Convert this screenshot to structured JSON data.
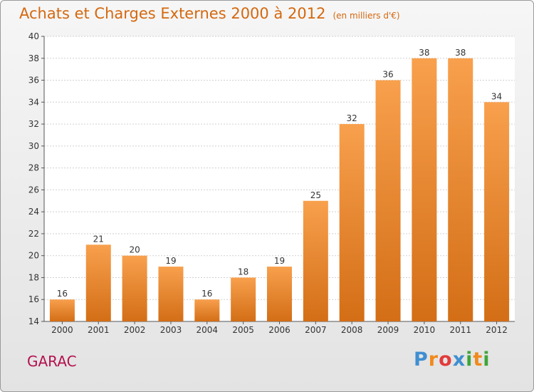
{
  "title": "Achats et Charges Externes 2000 à 2012",
  "unit": "(en milliers d'€)",
  "town": "GARAC",
  "logo": {
    "text": "Proxiti",
    "letters": [
      {
        "ch": "P",
        "color": "#3f8fd0"
      },
      {
        "ch": "r",
        "color": "#f08a1c"
      },
      {
        "ch": "o",
        "color": "#e23b3b"
      },
      {
        "ch": "x",
        "color": "#3f8fd0"
      },
      {
        "ch": "i",
        "color": "#3fa53a"
      },
      {
        "ch": "t",
        "color": "#f08a1c"
      },
      {
        "ch": "i",
        "color": "#3fa53a"
      }
    ]
  },
  "colors": {
    "bar_top": "#f8a04d",
    "bar_bottom": "#d36e16",
    "title": "#d4680f",
    "town": "#b3124f"
  },
  "chart_data": {
    "type": "bar",
    "title": "Achats et Charges Externes 2000 à 2012",
    "unit": "(en milliers d'€)",
    "categories": [
      "2000",
      "2001",
      "2002",
      "2003",
      "2004",
      "2005",
      "2006",
      "2007",
      "2008",
      "2009",
      "2010",
      "2011",
      "2012"
    ],
    "values": [
      16,
      21,
      20,
      19,
      16,
      18,
      19,
      25,
      32,
      36,
      38,
      38,
      34
    ],
    "ylim": [
      14,
      40
    ],
    "yticks": [
      14,
      16,
      18,
      20,
      22,
      24,
      26,
      28,
      30,
      32,
      34,
      36,
      38,
      40
    ],
    "grid": true,
    "xlabel": "",
    "ylabel": ""
  }
}
